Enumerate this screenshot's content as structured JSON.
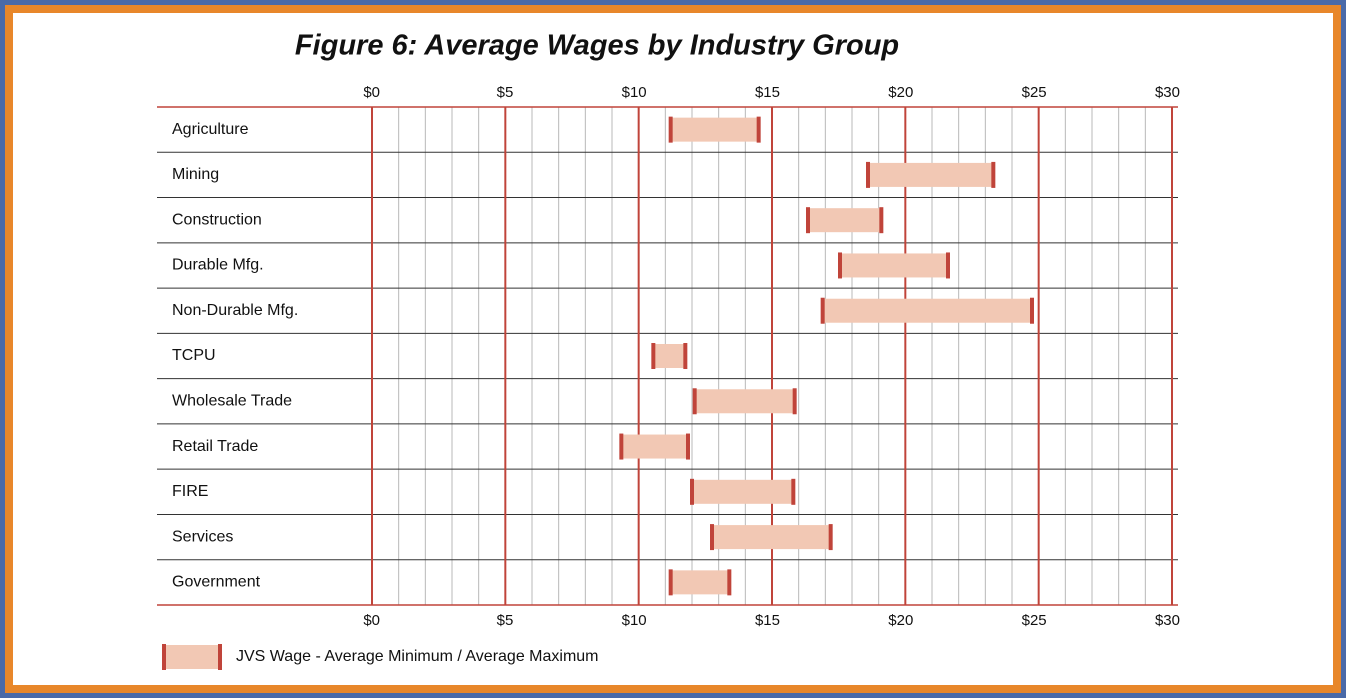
{
  "chart_data": {
    "type": "range_bar",
    "title": "Figure 6:  Average Wages by Industry Group",
    "categories": [
      "Agriculture",
      "Mining",
      "Construction",
      "Durable Mfg.",
      "Non-Durable Mfg.",
      "TCPU",
      "Wholesale Trade",
      "Retail Trade",
      "FIRE",
      "Services",
      "Government"
    ],
    "low": [
      11.2,
      18.6,
      16.35,
      17.55,
      16.9,
      10.55,
      12.1,
      9.35,
      12.0,
      12.75,
      11.2
    ],
    "high": [
      14.5,
      23.3,
      19.1,
      21.6,
      24.75,
      11.75,
      15.85,
      11.85,
      15.8,
      17.2,
      13.4
    ],
    "color": "#f2c8b4",
    "cap_color": "#c0443a",
    "legend": "JVS Wage - Average Minimum / Average Maximum",
    "xlim": [
      0,
      30
    ],
    "xticks": [
      {
        "value": 0,
        "label": "$0"
      },
      {
        "value": 5,
        "label": "$5"
      },
      {
        "value": 10,
        "label": "$10"
      },
      {
        "value": 15,
        "label": "$15"
      },
      {
        "value": 20,
        "label": "$20"
      },
      {
        "value": 25,
        "label": "$25"
      },
      {
        "value": 30,
        "label": "$30"
      }
    ],
    "xminor_ticks": [
      1,
      2,
      3,
      4,
      6,
      7,
      8,
      9,
      11,
      12,
      13,
      14,
      16,
      17,
      18,
      19,
      21,
      22,
      23,
      24,
      26,
      27,
      28,
      29
    ],
    "grid": true
  }
}
